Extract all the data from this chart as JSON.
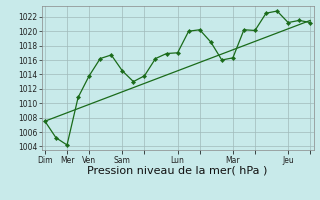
{
  "background_color": "#c8eaea",
  "grid_color": "#a0baba",
  "line_color": "#1a6b1a",
  "marker_color": "#1a6b1a",
  "xlabel": "Pression niveau de la mer( hPa )",
  "xlabel_fontsize": 8,
  "ylim": [
    1003.5,
    1023.5
  ],
  "yticks": [
    1004,
    1006,
    1008,
    1010,
    1012,
    1014,
    1016,
    1018,
    1020,
    1022
  ],
  "xtick_positions": [
    0,
    2,
    4,
    7,
    9,
    12,
    14,
    17,
    19,
    22,
    24
  ],
  "xtick_labels": [
    "Dim",
    "Mer",
    "Ven",
    "Sam",
    "",
    "Lun",
    "",
    "Mar",
    "",
    "Jeu",
    ""
  ],
  "jagged_x": [
    0,
    1,
    2,
    3,
    4,
    5,
    6,
    7,
    8,
    9,
    10,
    11,
    12,
    13,
    14,
    15,
    16,
    17,
    18,
    19,
    20,
    21,
    22,
    23,
    24
  ],
  "jagged_y": [
    1007.5,
    1005.2,
    1004.2,
    1010.8,
    1013.8,
    1016.2,
    1016.7,
    1014.5,
    1013.0,
    1013.8,
    1016.2,
    1016.9,
    1017.0,
    1020.0,
    1020.2,
    1018.5,
    1016.0,
    1016.3,
    1020.2,
    1020.1,
    1022.5,
    1022.8,
    1021.2,
    1021.5,
    1021.2
  ],
  "trend_x": [
    0,
    24
  ],
  "trend_y": [
    1007.5,
    1021.5
  ],
  "figsize": [
    3.2,
    2.0
  ],
  "dpi": 100
}
